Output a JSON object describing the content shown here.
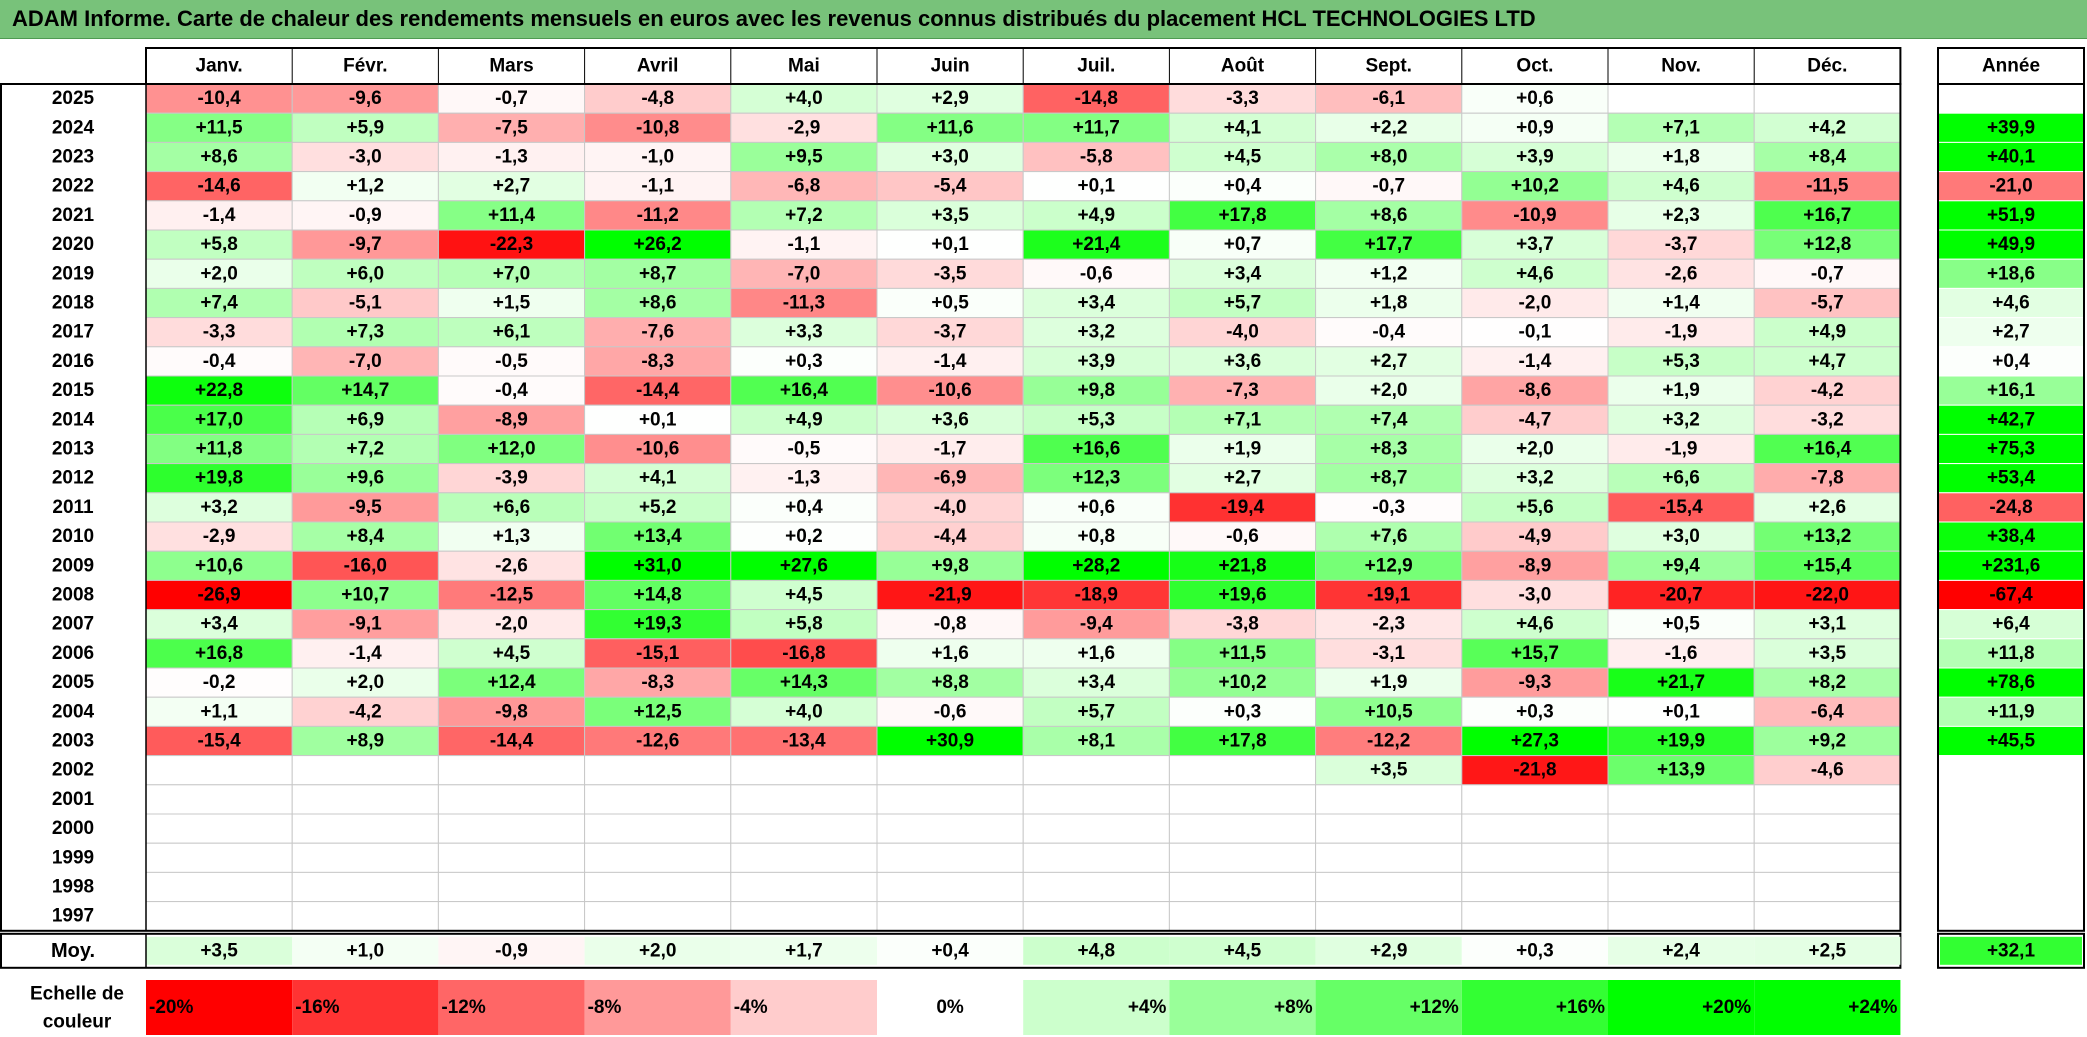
{
  "title": "ADAM Informe. Carte de chaleur des rendements mensuels en euros avec les revenus connus distribués du placement HCL TECHNOLOGIES LTD",
  "chart_data": {
    "type": "heatmap",
    "months": [
      "Janv.",
      "Févr.",
      "Mars",
      "Avril",
      "Mai",
      "Juin",
      "Juil.",
      "Août",
      "Sept.",
      "Oct.",
      "Nov.",
      "Déc."
    ],
    "year_header": "Année",
    "years": [
      "2025",
      "2024",
      "2023",
      "2022",
      "2021",
      "2020",
      "2019",
      "2018",
      "2017",
      "2016",
      "2015",
      "2014",
      "2013",
      "2012",
      "2011",
      "2010",
      "2009",
      "2008",
      "2007",
      "2006",
      "2005",
      "2004",
      "2003",
      "2002",
      "2001",
      "2000",
      "1999",
      "1998",
      "1997"
    ],
    "values": [
      [
        "-10,4",
        "-9,6",
        "-0,7",
        "-4,8",
        "+4,0",
        "+2,9",
        "-14,8",
        "-3,3",
        "-6,1",
        "+0,6",
        "",
        ""
      ],
      [
        "+11,5",
        "+5,9",
        "-7,5",
        "-10,8",
        "-2,9",
        "+11,6",
        "+11,7",
        "+4,1",
        "+2,2",
        "+0,9",
        "+7,1",
        "+4,2"
      ],
      [
        "+8,6",
        "-3,0",
        "-1,3",
        "-1,0",
        "+9,5",
        "+3,0",
        "-5,8",
        "+4,5",
        "+8,0",
        "+3,9",
        "+1,8",
        "+8,4"
      ],
      [
        "-14,6",
        "+1,2",
        "+2,7",
        "-1,1",
        "-6,8",
        "-5,4",
        "+0,1",
        "+0,4",
        "-0,7",
        "+10,2",
        "+4,6",
        "-11,5"
      ],
      [
        "-1,4",
        "-0,9",
        "+11,4",
        "-11,2",
        "+7,2",
        "+3,5",
        "+4,9",
        "+17,8",
        "+8,6",
        "-10,9",
        "+2,3",
        "+16,7"
      ],
      [
        "+5,8",
        "-9,7",
        "-22,3",
        "+26,2",
        "-1,1",
        "+0,1",
        "+21,4",
        "+0,7",
        "+17,7",
        "+3,7",
        "-3,7",
        "+12,8"
      ],
      [
        "+2,0",
        "+6,0",
        "+7,0",
        "+8,7",
        "-7,0",
        "-3,5",
        "-0,6",
        "+3,4",
        "+1,2",
        "+4,6",
        "-2,6",
        "-0,7"
      ],
      [
        "+7,4",
        "-5,1",
        "+1,5",
        "+8,6",
        "-11,3",
        "+0,5",
        "+3,4",
        "+5,7",
        "+1,8",
        "-2,0",
        "+1,4",
        "-5,7"
      ],
      [
        "-3,3",
        "+7,3",
        "+6,1",
        "-7,6",
        "+3,3",
        "-3,7",
        "+3,2",
        "-4,0",
        "-0,4",
        "-0,1",
        "-1,9",
        "+4,9"
      ],
      [
        "-0,4",
        "-7,0",
        "-0,5",
        "-8,3",
        "+0,3",
        "-1,4",
        "+3,9",
        "+3,6",
        "+2,7",
        "-1,4",
        "+5,3",
        "+4,7"
      ],
      [
        "+22,8",
        "+14,7",
        "-0,4",
        "-14,4",
        "+16,4",
        "-10,6",
        "+9,8",
        "-7,3",
        "+2,0",
        "-8,6",
        "+1,9",
        "-4,2"
      ],
      [
        "+17,0",
        "+6,9",
        "-8,9",
        "+0,1",
        "+4,9",
        "+3,6",
        "+5,3",
        "+7,1",
        "+7,4",
        "-4,7",
        "+3,2",
        "-3,2"
      ],
      [
        "+11,8",
        "+7,2",
        "+12,0",
        "-10,6",
        "-0,5",
        "-1,7",
        "+16,6",
        "+1,9",
        "+8,3",
        "+2,0",
        "-1,9",
        "+16,4"
      ],
      [
        "+19,8",
        "+9,6",
        "-3,9",
        "+4,1",
        "-1,3",
        "-6,9",
        "+12,3",
        "+2,7",
        "+8,7",
        "+3,2",
        "+6,6",
        "-7,8"
      ],
      [
        "+3,2",
        "-9,5",
        "+6,6",
        "+5,2",
        "+0,4",
        "-4,0",
        "+0,6",
        "-19,4",
        "-0,3",
        "+5,6",
        "-15,4",
        "+2,6"
      ],
      [
        "-2,9",
        "+8,4",
        "+1,3",
        "+13,4",
        "+0,2",
        "-4,4",
        "+0,8",
        "-0,6",
        "+7,6",
        "-4,9",
        "+3,0",
        "+13,2"
      ],
      [
        "+10,6",
        "-16,0",
        "-2,6",
        "+31,0",
        "+27,6",
        "+9,8",
        "+28,2",
        "+21,8",
        "+12,9",
        "-8,9",
        "+9,4",
        "+15,4"
      ],
      [
        "-26,9",
        "+10,7",
        "-12,5",
        "+14,8",
        "+4,5",
        "-21,9",
        "-18,9",
        "+19,6",
        "-19,1",
        "-3,0",
        "-20,7",
        "-22,0"
      ],
      [
        "+3,4",
        "-9,1",
        "-2,0",
        "+19,3",
        "+5,8",
        "-0,8",
        "-9,4",
        "-3,8",
        "-2,3",
        "+4,6",
        "+0,5",
        "+3,1"
      ],
      [
        "+16,8",
        "-1,4",
        "+4,5",
        "-15,1",
        "-16,8",
        "+1,6",
        "+1,6",
        "+11,5",
        "-3,1",
        "+15,7",
        "-1,6",
        "+3,5"
      ],
      [
        "-0,2",
        "+2,0",
        "+12,4",
        "-8,3",
        "+14,3",
        "+8,8",
        "+3,4",
        "+10,2",
        "+1,9",
        "-9,3",
        "+21,7",
        "+8,2"
      ],
      [
        "+1,1",
        "-4,2",
        "-9,8",
        "+12,5",
        "+4,0",
        "-0,6",
        "+5,7",
        "+0,3",
        "+10,5",
        "+0,3",
        "+0,1",
        "-6,4"
      ],
      [
        "-15,4",
        "+8,9",
        "-14,4",
        "-12,6",
        "-13,4",
        "+30,9",
        "+8,1",
        "+17,8",
        "-12,2",
        "+27,3",
        "+19,9",
        "+9,2"
      ],
      [
        "",
        "",
        "",
        "",
        "",
        "",
        "",
        "",
        "+3,5",
        "-21,8",
        "+13,9",
        "-4,6"
      ],
      [
        "",
        "",
        "",
        "",
        "",
        "",
        "",
        "",
        "",
        "",
        "",
        ""
      ],
      [
        "",
        "",
        "",
        "",
        "",
        "",
        "",
        "",
        "",
        "",
        "",
        ""
      ],
      [
        "",
        "",
        "",
        "",
        "",
        "",
        "",
        "",
        "",
        "",
        "",
        ""
      ],
      [
        "",
        "",
        "",
        "",
        "",
        "",
        "",
        "",
        "",
        "",
        "",
        ""
      ],
      [
        "",
        "",
        "",
        "",
        "",
        "",
        "",
        "",
        "",
        "",
        "",
        ""
      ]
    ],
    "annual": [
      "",
      "+39,9",
      "+40,1",
      "-21,0",
      "+51,9",
      "+49,9",
      "+18,6",
      "+4,6",
      "+2,7",
      "+0,4",
      "+16,1",
      "+42,7",
      "+75,3",
      "+53,4",
      "-24,8",
      "+38,4",
      "+231,6",
      "-67,4",
      "+6,4",
      "+11,8",
      "+78,6",
      "+11,9",
      "+45,5",
      "",
      "",
      "",
      "",
      "",
      ""
    ],
    "average": {
      "label": "Moy.",
      "values": [
        "+3,5",
        "+1,0",
        "-0,9",
        "+2,0",
        "+1,7",
        "+0,4",
        "+4,8",
        "+4,5",
        "+2,9",
        "+0,3",
        "+2,4",
        "+2,5"
      ],
      "annual": "+32,1"
    },
    "scale": {
      "label_line1": "Echelle de",
      "label_line2": "couleur",
      "steps": [
        "-20%",
        "-16%",
        "-12%",
        "-8%",
        "-4%",
        "0%",
        "+4%",
        "+8%",
        "+12%",
        "+16%",
        "+20%",
        "+24%"
      ],
      "step_values": [
        -20,
        -16,
        -12,
        -8,
        -4,
        0,
        4,
        8,
        12,
        16,
        20,
        24
      ]
    },
    "colors": {
      "negative_max": "#ff0000",
      "positive_max": "#00ff00",
      "neutral": "#ffffff",
      "title_bar": "#78c27a"
    }
  }
}
